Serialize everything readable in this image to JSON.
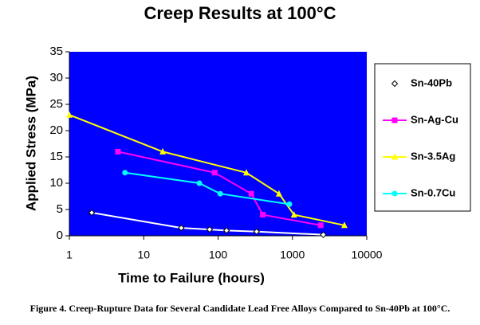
{
  "chart_data": {
    "type": "line",
    "title": "Creep Results at 100°C",
    "x_label": "Time to Failure (hours)",
    "y_label": "Applied Stress (MPa)",
    "caption": "Figure 4. Creep-Rupture Data for Several Candidate Lead Free Alloys Compared to Sn-40Pb at 100°C.",
    "xscale": "log",
    "xlim": [
      1,
      10000
    ],
    "xticks": [
      1,
      10,
      100,
      1000,
      10000
    ],
    "ylim": [
      0,
      35
    ],
    "yticks": [
      0,
      5,
      10,
      15,
      20,
      25,
      30,
      35
    ],
    "background": "#0000ff",
    "legend": "right",
    "series": [
      {
        "name": "Sn-40Pb",
        "color": "#ffffff",
        "marker": "diamond",
        "x": [
          2,
          32,
          77,
          130,
          330,
          2600
        ],
        "values": [
          4.4,
          1.5,
          1.2,
          1.0,
          0.8,
          0.2
        ]
      },
      {
        "name": "Sn-Ag-Cu",
        "color": "#ff00ff",
        "marker": "square",
        "x": [
          4.5,
          90,
          280,
          400,
          2400
        ],
        "values": [
          16,
          12,
          8,
          4,
          2
        ]
      },
      {
        "name": "Sn-3.5Ag",
        "color": "#ffff00",
        "marker": "triangle",
        "x": [
          1,
          18,
          240,
          660,
          1050,
          5000
        ],
        "values": [
          23,
          16,
          12,
          8,
          4,
          2
        ]
      },
      {
        "name": "Sn-0.7Cu",
        "color": "#00ffff",
        "marker": "circle",
        "x": [
          5.6,
          56,
          107,
          910
        ],
        "values": [
          12,
          10,
          8,
          6
        ]
      }
    ]
  }
}
